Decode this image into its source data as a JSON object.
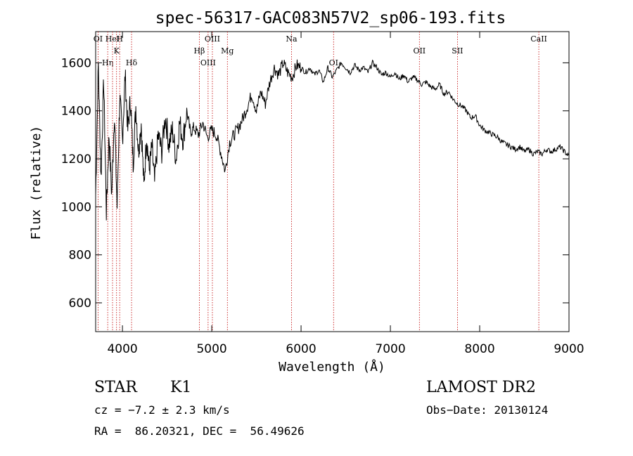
{
  "chart_data": {
    "type": "line",
    "title": "spec-56317-GAC083N57V2_sp06-193.fits",
    "xlabel": "Wavelength (Å)",
    "ylabel": "Flux (relative)",
    "xlim": [
      3700,
      9000
    ],
    "ylim": [
      480,
      1730
    ],
    "xticks": [
      4000,
      5000,
      6000,
      7000,
      8000,
      9000
    ],
    "yticks": [
      600,
      800,
      1000,
      1200,
      1400,
      1600
    ],
    "grid": false,
    "series": [
      {
        "x": [
          3700,
          3730,
          3760,
          3790,
          3820,
          3850,
          3880,
          3910,
          3940,
          3970,
          4000,
          4030,
          4060,
          4090,
          4120,
          4150,
          4180,
          4210,
          4240,
          4270,
          4300,
          4330,
          4360,
          4400,
          4440,
          4480,
          4520,
          4560,
          4600,
          4640,
          4680,
          4720,
          4760,
          4800,
          4850,
          4900,
          4950,
          5000,
          5050,
          5100,
          5150,
          5200,
          5250,
          5300,
          5350,
          5400,
          5450,
          5500,
          5550,
          5600,
          5650,
          5700,
          5750,
          5800,
          5850,
          5900,
          5950,
          6000,
          6050,
          6100,
          6150,
          6200,
          6250,
          6300,
          6350,
          6400,
          6450,
          6500,
          6550,
          6600,
          6650,
          6700,
          6750,
          6800,
          6850,
          6900,
          6950,
          7000,
          7050,
          7100,
          7150,
          7200,
          7250,
          7300,
          7350,
          7400,
          7450,
          7500,
          7550,
          7600,
          7650,
          7700,
          7750,
          7800,
          7850,
          7900,
          7950,
          8000,
          8050,
          8100,
          8150,
          8200,
          8250,
          8300,
          8350,
          8400,
          8450,
          8500,
          8550,
          8600,
          8650,
          8700,
          8750,
          8800,
          8850,
          8900,
          8950,
          9000
        ],
        "y": [
          1050,
          1590,
          1120,
          1530,
          980,
          1300,
          1050,
          1400,
          1000,
          1460,
          1280,
          1550,
          1320,
          1450,
          1180,
          1420,
          1230,
          1350,
          1080,
          1300,
          1150,
          1250,
          1100,
          1300,
          1230,
          1380,
          1260,
          1320,
          1200,
          1350,
          1280,
          1400,
          1310,
          1330,
          1300,
          1350,
          1290,
          1320,
          1300,
          1230,
          1150,
          1270,
          1300,
          1330,
          1370,
          1420,
          1470,
          1400,
          1480,
          1430,
          1520,
          1580,
          1550,
          1600,
          1560,
          1540,
          1590,
          1580,
          1560,
          1580,
          1550,
          1570,
          1520,
          1580,
          1540,
          1570,
          1600,
          1580,
          1560,
          1590,
          1570,
          1580,
          1560,
          1600,
          1580,
          1550,
          1560,
          1540,
          1560,
          1530,
          1550,
          1520,
          1540,
          1530,
          1510,
          1520,
          1500,
          1490,
          1510,
          1470,
          1480,
          1450,
          1430,
          1420,
          1400,
          1370,
          1380,
          1340,
          1320,
          1310,
          1300,
          1290,
          1270,
          1260,
          1250,
          1240,
          1250,
          1230,
          1240,
          1220,
          1230,
          1220,
          1240,
          1230,
          1240,
          1250,
          1230,
          1210
        ]
      }
    ],
    "line_markers": [
      {
        "label": "OI",
        "x": 3727
      },
      {
        "label": "Hη",
        "x": 3835
      },
      {
        "label": "HeI",
        "x": 3889
      },
      {
        "label": "K",
        "x": 3934
      },
      {
        "label": "H",
        "x": 3969
      },
      {
        "label": "Hδ",
        "x": 4102
      },
      {
        "label": "Hβ",
        "x": 4861
      },
      {
        "label": "OIII",
        "x": 4959
      },
      {
        "label": "OIII",
        "x": 5007
      },
      {
        "label": "Mg",
        "x": 5175
      },
      {
        "label": "Na",
        "x": 5893
      },
      {
        "label": "OI",
        "x": 6364
      },
      {
        "label": "OII",
        "x": 7325
      },
      {
        "label": "SII",
        "x": 7751
      },
      {
        "label": "CaII",
        "x": 8662
      }
    ]
  },
  "footer": {
    "class_label": "STAR",
    "subclass_label": "K1",
    "survey": "LAMOST DR2",
    "cz": "cz = −7.2 ± 2.3 km/s",
    "obs_date": "Obs−Date: 20130124",
    "coords": "RA =  86.20321, DEC =  56.49626"
  }
}
